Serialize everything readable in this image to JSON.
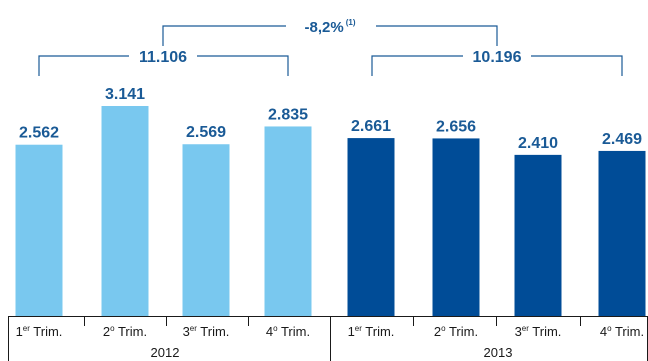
{
  "chart_data": {
    "type": "bar",
    "categories": [
      {
        "num": "1",
        "sup": "er",
        "label": "Trim.",
        "year_index": 0
      },
      {
        "num": "2",
        "sup": "o",
        "label": "Trim.",
        "year_index": 0
      },
      {
        "num": "3",
        "sup": "er",
        "label": "Trim.",
        "year_index": 0
      },
      {
        "num": "4",
        "sup": "o",
        "label": "Trim.",
        "year_index": 0
      },
      {
        "num": "1",
        "sup": "er",
        "label": "Trim.",
        "year_index": 1
      },
      {
        "num": "2",
        "sup": "o",
        "label": "Trim.",
        "year_index": 1
      },
      {
        "num": "3",
        "sup": "er",
        "label": "Trim.",
        "year_index": 1
      },
      {
        "num": "4",
        "sup": "o",
        "label": "Trim.",
        "year_index": 1
      }
    ],
    "values": [
      2562,
      3141,
      2569,
      2835,
      2661,
      2656,
      2410,
      2469
    ],
    "value_labels": [
      "2.562",
      "3.141",
      "2.569",
      "2.835",
      "2.661",
      "2.656",
      "2.410",
      "2.469"
    ],
    "years": [
      {
        "label": "2012",
        "total": "11.106",
        "color": "#79c8ef"
      },
      {
        "label": "2013",
        "total": "10.196",
        "color": "#004c97"
      }
    ],
    "variation": {
      "label": "-8,2%",
      "note": "(1)"
    },
    "ylim": [
      0,
      3141
    ],
    "grid": false,
    "title": "",
    "xlabel": "",
    "ylabel": ""
  }
}
